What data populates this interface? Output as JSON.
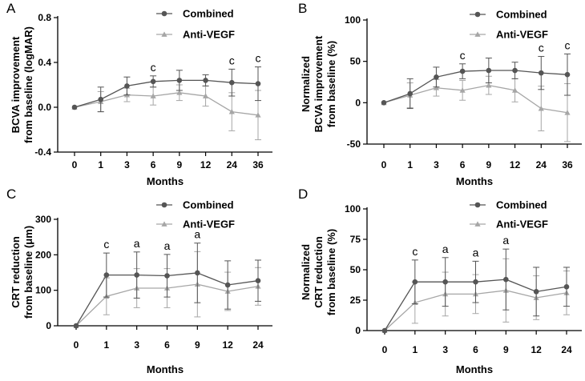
{
  "colors": {
    "combined": "#555555",
    "anti_vegf": "#a6a6a6",
    "axis": "#000000"
  },
  "chart_data": [
    {
      "panel": "A",
      "type": "line",
      "categories": [
        "0",
        "1",
        "3",
        "6",
        "9",
        "12",
        "24",
        "36"
      ],
      "xlabel": "Months",
      "ylabel_lines": [
        "BCVA improvement",
        "from baseline (logMAR)"
      ],
      "ylim": [
        -0.4,
        0.8
      ],
      "yticks": [
        -0.4,
        0.0,
        0.4,
        0.8
      ],
      "ytick_labels": [
        "-0.4",
        "0.0",
        "0.4",
        "0.8"
      ],
      "legend": [
        "Combined",
        "Anti-VEGF"
      ],
      "series": [
        {
          "name": "Combined",
          "values": [
            0.0,
            0.07,
            0.19,
            0.23,
            0.24,
            0.24,
            0.22,
            0.21
          ],
          "err": [
            0.0,
            0.11,
            0.08,
            0.05,
            0.09,
            0.05,
            0.12,
            0.15
          ]
        },
        {
          "name": "Anti-VEGF",
          "values": [
            0.0,
            0.05,
            0.11,
            0.1,
            0.13,
            0.1,
            -0.04,
            -0.07
          ],
          "err": [
            0.0,
            0.09,
            0.06,
            0.08,
            0.07,
            0.09,
            0.17,
            0.22
          ]
        }
      ],
      "annotations": [
        {
          "index": 3,
          "text": "c"
        },
        {
          "index": 6,
          "text": "c"
        },
        {
          "index": 7,
          "text": "c"
        }
      ]
    },
    {
      "panel": "B",
      "type": "line",
      "categories": [
        "0",
        "1",
        "3",
        "6",
        "9",
        "12",
        "24",
        "36"
      ],
      "xlabel": "Months",
      "ylabel_lines": [
        "Normalized",
        "BCVA improvement",
        "from baseline (%)"
      ],
      "ylim": [
        -50,
        100
      ],
      "yticks": [
        -50,
        0,
        50,
        100
      ],
      "ytick_labels": [
        "-50",
        "0",
        "50",
        "100"
      ],
      "legend": [
        "Combined",
        "Anti-VEGF"
      ],
      "series": [
        {
          "name": "Combined",
          "values": [
            0,
            11,
            31,
            38,
            39,
            39,
            36,
            34
          ],
          "err": [
            0,
            18,
            12,
            9,
            15,
            10,
            20,
            25
          ]
        },
        {
          "name": "Anti-VEGF",
          "values": [
            0,
            9,
            18,
            15,
            21,
            15,
            -7,
            -12
          ],
          "err": [
            0,
            15,
            10,
            12,
            11,
            14,
            27,
            35
          ]
        }
      ],
      "annotations": [
        {
          "index": 3,
          "text": "c"
        },
        {
          "index": 6,
          "text": "c"
        },
        {
          "index": 7,
          "text": "c"
        }
      ]
    },
    {
      "panel": "C",
      "type": "line",
      "categories": [
        "0",
        "1",
        "3",
        "6",
        "9",
        "12",
        "24"
      ],
      "xlabel": "Months",
      "ylabel_lines": [
        "CRT reduction",
        "from baseline (μm)"
      ],
      "ylim": [
        0,
        300
      ],
      "yticks": [
        0,
        100,
        200,
        300
      ],
      "ytick_labels": [
        "0",
        "100",
        "200",
        "300"
      ],
      "legend": [
        "Combined",
        "Anti-VEGF"
      ],
      "series": [
        {
          "name": "Combined",
          "values": [
            0,
            143,
            143,
            141,
            149,
            115,
            127
          ],
          "err": [
            0,
            62,
            65,
            60,
            84,
            68,
            58
          ]
        },
        {
          "name": "Anti-VEGF",
          "values": [
            0,
            83,
            106,
            106,
            117,
            97,
            111
          ],
          "err": [
            0,
            52,
            55,
            55,
            92,
            54,
            53
          ]
        }
      ],
      "annotations": [
        {
          "index": 1,
          "text": "c"
        },
        {
          "index": 2,
          "text": "a"
        },
        {
          "index": 3,
          "text": "a"
        },
        {
          "index": 4,
          "text": "a"
        }
      ]
    },
    {
      "panel": "D",
      "type": "line",
      "categories": [
        "0",
        "1",
        "3",
        "6",
        "9",
        "12",
        "24"
      ],
      "xlabel": "Months",
      "ylabel_lines": [
        "Normalized",
        "CRT reduction",
        "from baseline (%)"
      ],
      "ylim": [
        0,
        100
      ],
      "yticks": [
        0,
        25,
        50,
        75,
        100
      ],
      "ytick_labels": [
        "0",
        "25",
        "50",
        "75",
        "100"
      ],
      "legend": [
        "Combined",
        "Anti-VEGF"
      ],
      "series": [
        {
          "name": "Combined",
          "values": [
            0,
            40,
            40,
            40,
            42,
            32,
            36
          ],
          "err": [
            0,
            18,
            20,
            17,
            25,
            20,
            16
          ]
        },
        {
          "name": "Anti-VEGF",
          "values": [
            0,
            23,
            30,
            30,
            33,
            27,
            31
          ],
          "err": [
            0,
            17,
            18,
            16,
            26,
            18,
            18
          ]
        }
      ],
      "annotations": [
        {
          "index": 1,
          "text": "c"
        },
        {
          "index": 2,
          "text": "a"
        },
        {
          "index": 3,
          "text": "a"
        },
        {
          "index": 4,
          "text": "a"
        }
      ]
    }
  ]
}
